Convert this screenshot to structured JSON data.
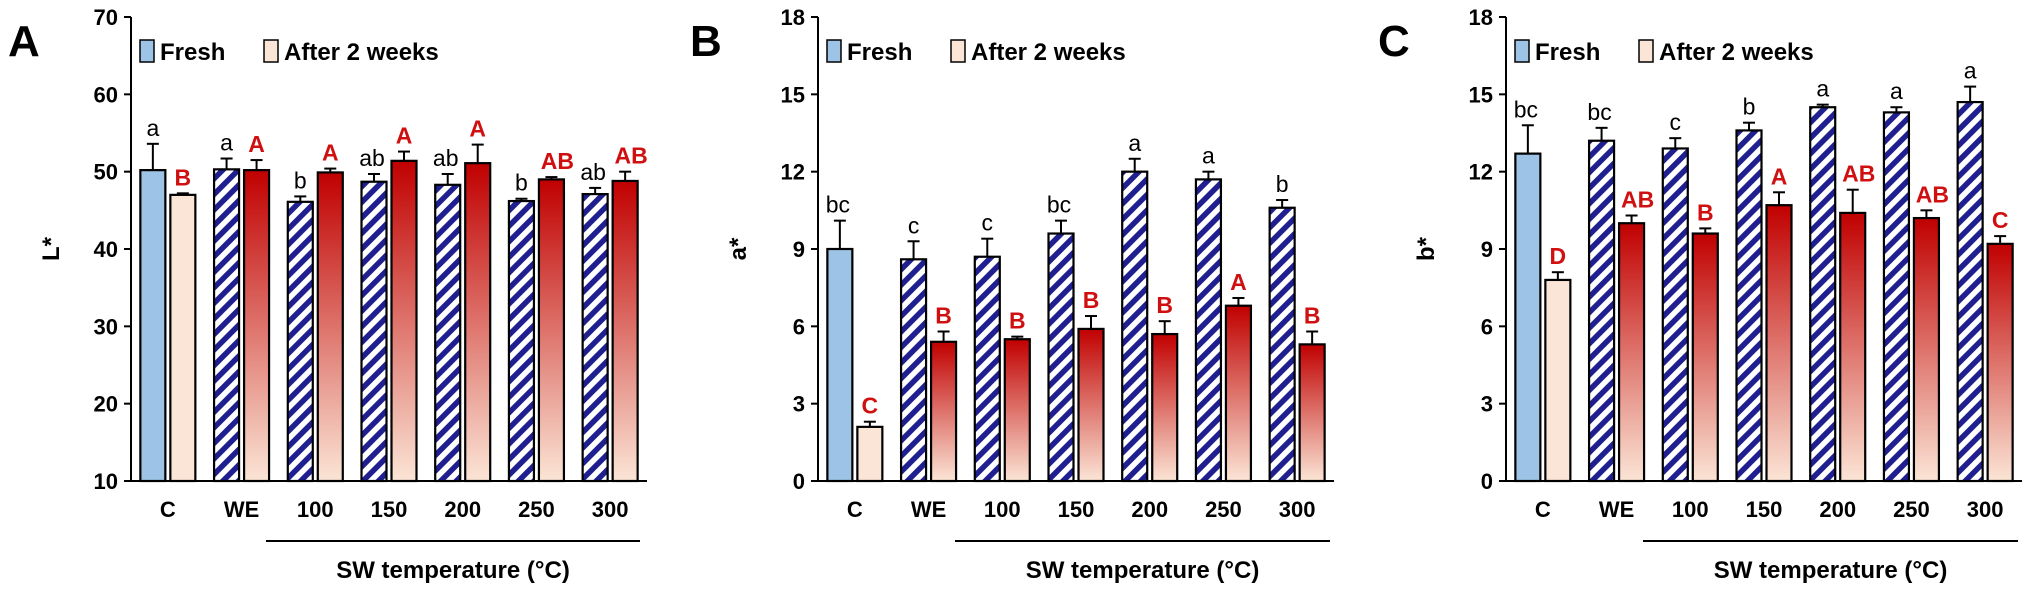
{
  "colors": {
    "fresh_fill": "#9dc3e6",
    "after_top": "#c00000",
    "after_bottom": "#fbe5d6",
    "hatch_blue": "#1f1f8f",
    "sig_red": "#d01010"
  },
  "legend": {
    "fresh": "Fresh",
    "after": "After 2 weeks"
  },
  "chart_data": [
    {
      "type": "bar",
      "panel": "A",
      "ylabel": "L*",
      "ylim": [
        10,
        70
      ],
      "yticks": [
        "10",
        "20",
        "30",
        "40",
        "50",
        "60",
        "70"
      ],
      "categories": [
        "C",
        "WE",
        "100",
        "150",
        "200",
        "250",
        "300"
      ],
      "xgroup_label": "SW temperature (°C)",
      "series": [
        {
          "name": "Fresh",
          "values": [
            50.2,
            50.3,
            46.1,
            48.7,
            48.3,
            46.2,
            47.1
          ],
          "errors": [
            3.4,
            1.4,
            0.7,
            1.0,
            1.4,
            0.3,
            0.8
          ],
          "letters": [
            "a",
            "a",
            "b",
            "ab",
            "ab",
            "b",
            "ab"
          ]
        },
        {
          "name": "After 2 weeks",
          "values": [
            47.0,
            50.2,
            49.9,
            51.4,
            51.1,
            49.0,
            48.8
          ],
          "errors": [
            0.2,
            1.3,
            0.5,
            1.2,
            2.4,
            0.3,
            1.2
          ],
          "letters": [
            "B",
            "A",
            "A",
            "A",
            "A",
            "AB",
            "AB"
          ]
        }
      ]
    },
    {
      "type": "bar",
      "panel": "B",
      "ylabel": "a*",
      "ylim": [
        0,
        18
      ],
      "yticks": [
        "0",
        "3",
        "6",
        "9",
        "12",
        "15",
        "18"
      ],
      "categories": [
        "C",
        "WE",
        "100",
        "150",
        "200",
        "250",
        "300"
      ],
      "xgroup_label": "SW temperature (°C)",
      "series": [
        {
          "name": "Fresh",
          "values": [
            9.0,
            8.6,
            8.7,
            9.6,
            12.0,
            11.7,
            10.6
          ],
          "errors": [
            1.1,
            0.7,
            0.7,
            0.5,
            0.5,
            0.3,
            0.3
          ],
          "letters": [
            "bc",
            "c",
            "c",
            "bc",
            "a",
            "a",
            "b"
          ]
        },
        {
          "name": "After 2 weeks",
          "values": [
            2.1,
            5.4,
            5.5,
            5.9,
            5.7,
            6.8,
            5.3
          ],
          "errors": [
            0.2,
            0.4,
            0.1,
            0.5,
            0.5,
            0.3,
            0.5
          ],
          "letters": [
            "C",
            "B",
            "B",
            "B",
            "B",
            "A",
            "B"
          ]
        }
      ]
    },
    {
      "type": "bar",
      "panel": "C",
      "ylabel": "b*",
      "ylim": [
        0,
        18
      ],
      "yticks": [
        "0",
        "3",
        "6",
        "9",
        "12",
        "15",
        "18"
      ],
      "categories": [
        "C",
        "WE",
        "100",
        "150",
        "200",
        "250",
        "300"
      ],
      "xgroup_label": "SW temperature (°C)",
      "series": [
        {
          "name": "Fresh",
          "values": [
            12.7,
            13.2,
            12.9,
            13.6,
            14.5,
            14.3,
            14.7
          ],
          "errors": [
            1.1,
            0.5,
            0.4,
            0.3,
            0.1,
            0.2,
            0.6
          ],
          "letters": [
            "bc",
            "bc",
            "c",
            "b",
            "a",
            "a",
            "a"
          ]
        },
        {
          "name": "After 2 weeks",
          "values": [
            7.8,
            10.0,
            9.6,
            10.7,
            10.4,
            10.2,
            9.2
          ],
          "errors": [
            0.3,
            0.3,
            0.2,
            0.5,
            0.9,
            0.3,
            0.3
          ],
          "letters": [
            "D",
            "AB",
            "B",
            "A",
            "AB",
            "AB",
            "C"
          ]
        }
      ]
    }
  ]
}
